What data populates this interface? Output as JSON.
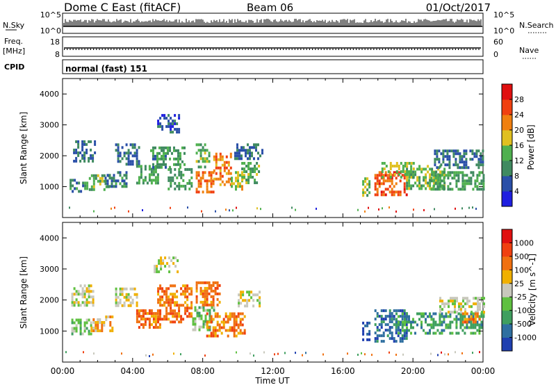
{
  "header": {
    "title": "Dome C East (fitACF)",
    "beam": "Beam 06",
    "date": "01/Oct/2017"
  },
  "sky_panel": {
    "left_label": "N.Sky",
    "left_ticks": [
      "10^5",
      "10^0"
    ],
    "right_label": "N.Search",
    "right_ticks": [
      "10^5",
      "10^0"
    ]
  },
  "freq_panel": {
    "left_label_1": "Freq.",
    "left_label_2": "[MHz]",
    "left_ticks": [
      "18",
      "8"
    ],
    "right_label": "Nave",
    "right_ticks": [
      "60",
      "0"
    ]
  },
  "cpid_panel": {
    "label": "CPID",
    "mode_text": "normal (fast) 151"
  },
  "colors": {
    "power": [
      "#1f1fe0",
      "#2a4fa8",
      "#3f8a60",
      "#4fb04f",
      "#e0c020",
      "#f08010",
      "#f04010",
      "#e01010"
    ],
    "velocity": [
      "#1f3fb0",
      "#2f6fa0",
      "#3f9f5f",
      "#5fc040",
      "#c8c8bc",
      "#f0b000",
      "#f07010",
      "#f04010",
      "#e01010"
    ]
  },
  "chart_data": [
    {
      "type": "heatmap",
      "name": "power",
      "ylabel": "Slant Range [km]",
      "ylim": [
        0,
        4500
      ],
      "yticks": [
        1000,
        2000,
        3000,
        4000
      ],
      "xlim": [
        0,
        24
      ],
      "colorbar": {
        "label": "Power [dB]",
        "ticks": [
          "28",
          "24",
          "20",
          "16",
          "12",
          "8",
          "4"
        ],
        "range": [
          0,
          32
        ]
      },
      "regions": [
        {
          "t0": 0.4,
          "t1": 1.4,
          "r0": 850,
          "r1": 1250,
          "v": 10
        },
        {
          "t0": 0.6,
          "t1": 1.8,
          "r0": 1800,
          "r1": 2500,
          "v": 8
        },
        {
          "t0": 1.5,
          "t1": 2.6,
          "r0": 900,
          "r1": 1400,
          "v": 14
        },
        {
          "t0": 2.4,
          "t1": 3.6,
          "r0": 1000,
          "r1": 1500,
          "v": 9
        },
        {
          "t0": 3.0,
          "t1": 4.4,
          "r0": 1700,
          "r1": 2400,
          "v": 8
        },
        {
          "t0": 4.2,
          "t1": 5.4,
          "r0": 1100,
          "r1": 1700,
          "v": 12
        },
        {
          "t0": 5.4,
          "t1": 6.6,
          "r0": 2800,
          "r1": 3350,
          "v": 6
        },
        {
          "t0": 5.0,
          "t1": 7.0,
          "r0": 1600,
          "r1": 2300,
          "v": 11
        },
        {
          "t0": 6.0,
          "t1": 7.4,
          "r0": 900,
          "r1": 1600,
          "v": 12
        },
        {
          "t0": 7.6,
          "t1": 8.6,
          "r0": 800,
          "r1": 1500,
          "v": 24
        },
        {
          "t0": 7.6,
          "t1": 8.4,
          "r0": 1600,
          "r1": 2400,
          "v": 14
        },
        {
          "t0": 8.6,
          "t1": 9.6,
          "r0": 1100,
          "r1": 2100,
          "v": 22
        },
        {
          "t0": 9.6,
          "t1": 10.4,
          "r0": 900,
          "r1": 1500,
          "v": 17
        },
        {
          "t0": 10.2,
          "t1": 11.2,
          "r0": 1100,
          "r1": 1800,
          "v": 13
        },
        {
          "t0": 9.8,
          "t1": 11.4,
          "r0": 1900,
          "r1": 2400,
          "v": 8
        },
        {
          "t0": 17.1,
          "t1": 17.5,
          "r0": 700,
          "r1": 1300,
          "v": 15
        },
        {
          "t0": 17.8,
          "t1": 19.6,
          "r0": 700,
          "r1": 1500,
          "v": 25
        },
        {
          "t0": 18.2,
          "t1": 20.0,
          "r0": 1300,
          "r1": 1800,
          "v": 16
        },
        {
          "t0": 19.6,
          "t1": 21.8,
          "r0": 900,
          "r1": 1700,
          "v": 14
        },
        {
          "t0": 21.0,
          "t1": 24.0,
          "r0": 900,
          "r1": 1500,
          "v": 12
        },
        {
          "t0": 21.2,
          "t1": 24.0,
          "r0": 1600,
          "r1": 2200,
          "v": 8
        }
      ]
    },
    {
      "type": "heatmap",
      "name": "velocity",
      "ylabel": "Slant Range [km]",
      "ylim": [
        0,
        4500
      ],
      "yticks": [
        1000,
        2000,
        3000,
        4000
      ],
      "xlim": [
        0,
        24
      ],
      "xlabel": "Time UT",
      "xticks": [
        "00:00",
        "04:00",
        "08:00",
        "12:00",
        "16:00",
        "20:00",
        "00:00"
      ],
      "colorbar": {
        "label": "Velocity [m s^-1]",
        "ticks": [
          "1000",
          "500",
          "100",
          "25",
          "-25",
          "-100",
          "-500",
          "-1000"
        ]
      },
      "regions": [
        {
          "t0": 0.5,
          "t1": 1.8,
          "r0": 1800,
          "r1": 2500,
          "v": 4
        },
        {
          "t0": 0.5,
          "t1": 1.6,
          "r0": 900,
          "r1": 1400,
          "v": 3
        },
        {
          "t0": 1.6,
          "t1": 2.8,
          "r0": 1000,
          "r1": 1500,
          "v": 5
        },
        {
          "t0": 3.0,
          "t1": 4.2,
          "r0": 1800,
          "r1": 2400,
          "v": 4
        },
        {
          "t0": 4.2,
          "t1": 5.6,
          "r0": 1100,
          "r1": 1700,
          "v": 6
        },
        {
          "t0": 5.2,
          "t1": 6.6,
          "r0": 2900,
          "r1": 3400,
          "v": 4
        },
        {
          "t0": 5.4,
          "t1": 7.4,
          "r0": 1300,
          "r1": 2500,
          "v": 6
        },
        {
          "t0": 7.4,
          "t1": 8.6,
          "r0": 1000,
          "r1": 1800,
          "v": 3
        },
        {
          "t0": 7.6,
          "t1": 9.0,
          "r0": 1800,
          "r1": 2600,
          "v": 6
        },
        {
          "t0": 8.2,
          "t1": 10.4,
          "r0": 800,
          "r1": 1600,
          "v": 6
        },
        {
          "t0": 10.0,
          "t1": 11.2,
          "r0": 1800,
          "r1": 2300,
          "v": 4
        },
        {
          "t0": 17.1,
          "t1": 17.5,
          "r0": 700,
          "r1": 1300,
          "v": 0
        },
        {
          "t0": 17.8,
          "t1": 19.6,
          "r0": 700,
          "r1": 1700,
          "v": 1
        },
        {
          "t0": 19.0,
          "t1": 21.0,
          "r0": 900,
          "r1": 1600,
          "v": 2
        },
        {
          "t0": 21.0,
          "t1": 24.0,
          "r0": 900,
          "r1": 1600,
          "v": 2
        },
        {
          "t0": 21.5,
          "t1": 24.0,
          "r0": 1600,
          "r1": 2100,
          "v": 4
        },
        {
          "t0": 22.8,
          "t1": 23.8,
          "r0": 1300,
          "r1": 1600,
          "v": 6
        }
      ]
    }
  ]
}
